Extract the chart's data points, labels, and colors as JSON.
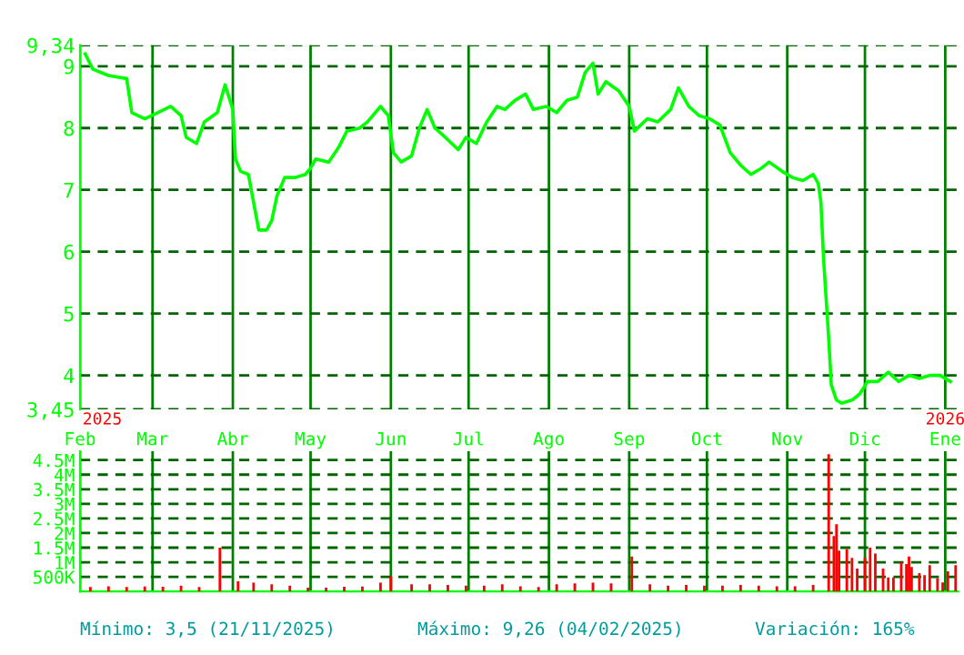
{
  "chart_data": [
    {
      "type": "line",
      "grid": true,
      "tick_labels": "y",
      "xlim": [
        "2025-02-01",
        "2026-01-06"
      ],
      "ylim": [
        3.45,
        9.34
      ],
      "xticks": [
        {
          "value": "2025-02-01",
          "label": null
        },
        {
          "value": "2025-03-01",
          "label": null
        },
        {
          "value": "2025-04-01",
          "label": null
        },
        {
          "value": "2025-05-01",
          "label": null
        },
        {
          "value": "2025-06-01",
          "label": null
        },
        {
          "value": "2025-07-01",
          "label": null
        },
        {
          "value": "2025-08-01",
          "label": null
        },
        {
          "value": "2025-09-01",
          "label": null
        },
        {
          "value": "2025-10-01",
          "label": null
        },
        {
          "value": "2025-11-01",
          "label": null
        },
        {
          "value": "2025-12-01",
          "label": null
        },
        {
          "value": "2026-01-01",
          "label": null
        }
      ],
      "yticks": [
        {
          "value": 9.34,
          "label": "9,34"
        },
        9,
        8,
        7,
        6,
        5,
        4,
        {
          "value": 3.45,
          "label": "3,45"
        }
      ],
      "annotations": [
        "2025",
        "2026"
      ],
      "x": [
        "2025-02-03",
        "2025-02-06",
        "2025-02-12",
        "2025-02-19",
        "2025-02-21",
        "2025-02-26",
        "2025-03-03",
        "2025-03-08",
        "2025-03-12",
        "2025-03-14",
        "2025-03-18",
        "2025-03-21",
        "2025-03-26",
        "2025-03-29",
        "2025-04-01",
        "2025-04-02",
        "2025-04-04",
        "2025-04-07",
        "2025-04-09",
        "2025-04-11",
        "2025-04-14",
        "2025-04-16",
        "2025-04-18",
        "2025-04-21",
        "2025-04-25",
        "2025-04-29",
        "2025-05-01",
        "2025-05-03",
        "2025-05-08",
        "2025-05-12",
        "2025-05-15",
        "2025-05-20",
        "2025-05-23",
        "2025-05-28",
        "2025-05-31",
        "2025-06-02",
        "2025-06-05",
        "2025-06-09",
        "2025-06-12",
        "2025-06-15",
        "2025-06-18",
        "2025-06-22",
        "2025-06-27",
        "2025-06-30",
        "2025-07-04",
        "2025-07-08",
        "2025-07-12",
        "2025-07-15",
        "2025-07-19",
        "2025-07-23",
        "2025-07-26",
        "2025-07-31",
        "2025-08-04",
        "2025-08-08",
        "2025-08-12",
        "2025-08-15",
        "2025-08-18",
        "2025-08-20",
        "2025-08-23",
        "2025-08-28",
        "2025-09-01",
        "2025-09-03",
        "2025-09-08",
        "2025-09-12",
        "2025-09-17",
        "2025-09-20",
        "2025-09-24",
        "2025-09-28",
        "2025-10-02",
        "2025-10-06",
        "2025-10-10",
        "2025-10-14",
        "2025-10-18",
        "2025-10-22",
        "2025-10-25",
        "2025-10-30",
        "2025-11-03",
        "2025-11-07",
        "2025-11-11",
        "2025-11-13",
        "2025-11-14",
        "2025-11-15",
        "2025-11-17",
        "2025-11-18",
        "2025-11-20",
        "2025-11-22",
        "2025-11-26",
        "2025-11-29",
        "2025-12-02",
        "2025-12-06",
        "2025-12-10",
        "2025-12-14",
        "2025-12-18",
        "2025-12-22",
        "2025-12-26",
        "2025-12-30",
        "2026-01-03"
      ],
      "series": [
        {
          "color": "#00ff00",
          "values": [
            9.2,
            8.95,
            8.85,
            8.8,
            8.25,
            8.15,
            8.25,
            8.35,
            8.2,
            7.85,
            7.75,
            8.1,
            8.25,
            8.7,
            8.3,
            7.5,
            7.3,
            7.25,
            6.8,
            6.35,
            6.35,
            6.5,
            6.9,
            7.2,
            7.2,
            7.25,
            7.35,
            7.5,
            7.45,
            7.7,
            7.95,
            8.0,
            8.1,
            8.35,
            8.2,
            7.6,
            7.45,
            7.55,
            8.0,
            8.3,
            8.0,
            7.85,
            7.65,
            7.85,
            7.75,
            8.1,
            8.35,
            8.3,
            8.45,
            8.55,
            8.3,
            8.35,
            8.25,
            8.45,
            8.5,
            8.9,
            9.05,
            8.55,
            8.75,
            8.6,
            8.35,
            7.95,
            8.15,
            8.1,
            8.3,
            8.65,
            8.35,
            8.2,
            8.15,
            8.05,
            7.6,
            7.4,
            7.25,
            7.35,
            7.45,
            7.3,
            7.2,
            7.15,
            7.25,
            7.1,
            6.8,
            5.9,
            4.6,
            3.85,
            3.6,
            3.55,
            3.6,
            3.7,
            3.9,
            3.9,
            4.05,
            3.9,
            4.0,
            3.95,
            4.0,
            4.0,
            3.9
          ]
        }
      ]
    },
    {
      "type": "bar",
      "grid": true,
      "xlim": [
        "2025-02-01",
        "2026-01-06"
      ],
      "ylim": [
        0,
        4800000
      ],
      "xticks": [
        {
          "value": "2025-02-01",
          "label": "Feb"
        },
        {
          "value": "2025-03-01",
          "label": "Mar"
        },
        {
          "value": "2025-04-01",
          "label": "Abr"
        },
        {
          "value": "2025-05-01",
          "label": "May"
        },
        {
          "value": "2025-06-01",
          "label": "Jun"
        },
        {
          "value": "2025-07-01",
          "label": "Jul"
        },
        {
          "value": "2025-08-01",
          "label": "Ago"
        },
        {
          "value": "2025-09-01",
          "label": "Sep"
        },
        {
          "value": "2025-10-01",
          "label": "Oct"
        },
        {
          "value": "2025-11-01",
          "label": "Nov"
        },
        {
          "value": "2025-12-01",
          "label": "Dic"
        },
        {
          "value": "2026-01-01",
          "label": "Ene"
        }
      ],
      "yticks": [
        {
          "value": 500000,
          "label": "500K"
        },
        {
          "value": 1000000,
          "label": "1M"
        },
        {
          "value": 1500000,
          "label": "1.5M"
        },
        {
          "value": 2000000,
          "label": "2M"
        },
        {
          "value": 2500000,
          "label": "2.5M"
        },
        {
          "value": 3000000,
          "label": "3M"
        },
        {
          "value": 3500000,
          "label": "3.5M"
        },
        {
          "value": 4000000,
          "label": "4M"
        },
        {
          "value": 4500000,
          "label": "4.5M"
        }
      ],
      "annotations": [
        "Mínimo: 3,5 (21/11/2025)",
        "Máximo: 9,26 (04/02/2025)",
        "Variación: 165%"
      ],
      "x": [
        "2025-02-05",
        "2025-02-12",
        "2025-02-19",
        "2025-02-26",
        "2025-03-05",
        "2025-03-12",
        "2025-03-19",
        "2025-03-27",
        "2025-04-03",
        "2025-04-09",
        "2025-04-16",
        "2025-04-23",
        "2025-04-30",
        "2025-05-07",
        "2025-05-14",
        "2025-05-21",
        "2025-05-28",
        "2025-06-01",
        "2025-06-09",
        "2025-06-16",
        "2025-06-23",
        "2025-06-30",
        "2025-07-07",
        "2025-07-14",
        "2025-07-21",
        "2025-07-28",
        "2025-08-04",
        "2025-08-11",
        "2025-08-18",
        "2025-08-25",
        "2025-09-02",
        "2025-09-09",
        "2025-09-16",
        "2025-09-23",
        "2025-09-30",
        "2025-10-07",
        "2025-10-14",
        "2025-10-21",
        "2025-10-28",
        "2025-11-04",
        "2025-11-11",
        "2025-11-17",
        "2025-11-19",
        "2025-11-20",
        "2025-11-21",
        "2025-11-24",
        "2025-11-26",
        "2025-11-28",
        "2025-12-01",
        "2025-12-03",
        "2025-12-05",
        "2025-12-08",
        "2025-12-10",
        "2025-12-12",
        "2025-12-15",
        "2025-12-17",
        "2025-12-18",
        "2025-12-19",
        "2025-12-22",
        "2025-12-24",
        "2025-12-26",
        "2025-12-29",
        "2025-12-31",
        "2026-01-02",
        "2026-01-05"
      ],
      "series": [
        {
          "color": "#ff0000",
          "values": [
            150000,
            180000,
            150000,
            170000,
            160000,
            200000,
            150000,
            1500000,
            350000,
            300000,
            250000,
            200000,
            130000,
            130000,
            160000,
            170000,
            300000,
            520000,
            250000,
            250000,
            220000,
            200000,
            200000,
            250000,
            180000,
            150000,
            250000,
            280000,
            300000,
            280000,
            1200000,
            250000,
            200000,
            220000,
            200000,
            200000,
            220000,
            200000,
            180000,
            180000,
            220000,
            4700000,
            1900000,
            2300000,
            1400000,
            1450000,
            1150000,
            780000,
            1150000,
            1500000,
            1300000,
            780000,
            480000,
            480000,
            1000000,
            940000,
            1200000,
            840000,
            630000,
            560000,
            900000,
            460000,
            310000,
            690000,
            900000
          ]
        }
      ]
    }
  ]
}
